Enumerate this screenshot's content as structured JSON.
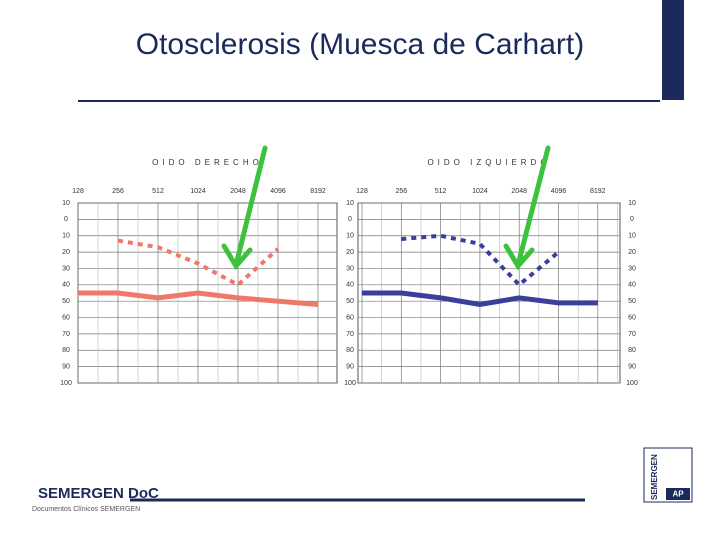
{
  "slide": {
    "title": "Otosclerosis (Muesca de Carhart)",
    "footer_brand": "SEMERGEN DoC",
    "footer_sub": "Documentos Clínicos SEMERGEN",
    "logo_text": "SEMERGEN",
    "logo_badge": "AP"
  },
  "chart_data": [
    {
      "type": "line",
      "title": "OIDO DERECHO",
      "categories": [
        "128",
        "256",
        "512",
        "1024",
        "2048",
        "4096",
        "8192"
      ],
      "ylim": [
        -10,
        100
      ],
      "y_inverted": true,
      "yticks": [
        {
          "value": -10,
          "label": "10"
        },
        0,
        10,
        20,
        30,
        40,
        50,
        60,
        70,
        80,
        90,
        100
      ],
      "grid": true,
      "series": [
        {
          "color": "#f07868",
          "dash": "dotted",
          "values": [
            null,
            13,
            17,
            27,
            40,
            18,
            null
          ]
        },
        {
          "color": "#f07868",
          "dash": "solid",
          "values": [
            45,
            45,
            48,
            45,
            48,
            50,
            52
          ]
        }
      ]
    },
    {
      "type": "line",
      "title": "OIDO IZQUIERDO",
      "categories": [
        "128",
        "256",
        "512",
        "1024",
        "2048",
        "4096",
        "8192"
      ],
      "ylim": [
        -10,
        100
      ],
      "y_inverted": true,
      "yticks": [
        {
          "value": -10,
          "label": "10"
        },
        0,
        10,
        20,
        30,
        40,
        50,
        60,
        70,
        80,
        90,
        100
      ],
      "grid": true,
      "series": [
        {
          "color": "#3a3f9a",
          "dash": "dotted",
          "values": [
            null,
            12,
            10,
            15,
            40,
            20,
            null
          ]
        },
        {
          "color": "#3a3f9a",
          "dash": "solid",
          "values": [
            45,
            45,
            48,
            52,
            48,
            51,
            51
          ]
        }
      ]
    }
  ]
}
